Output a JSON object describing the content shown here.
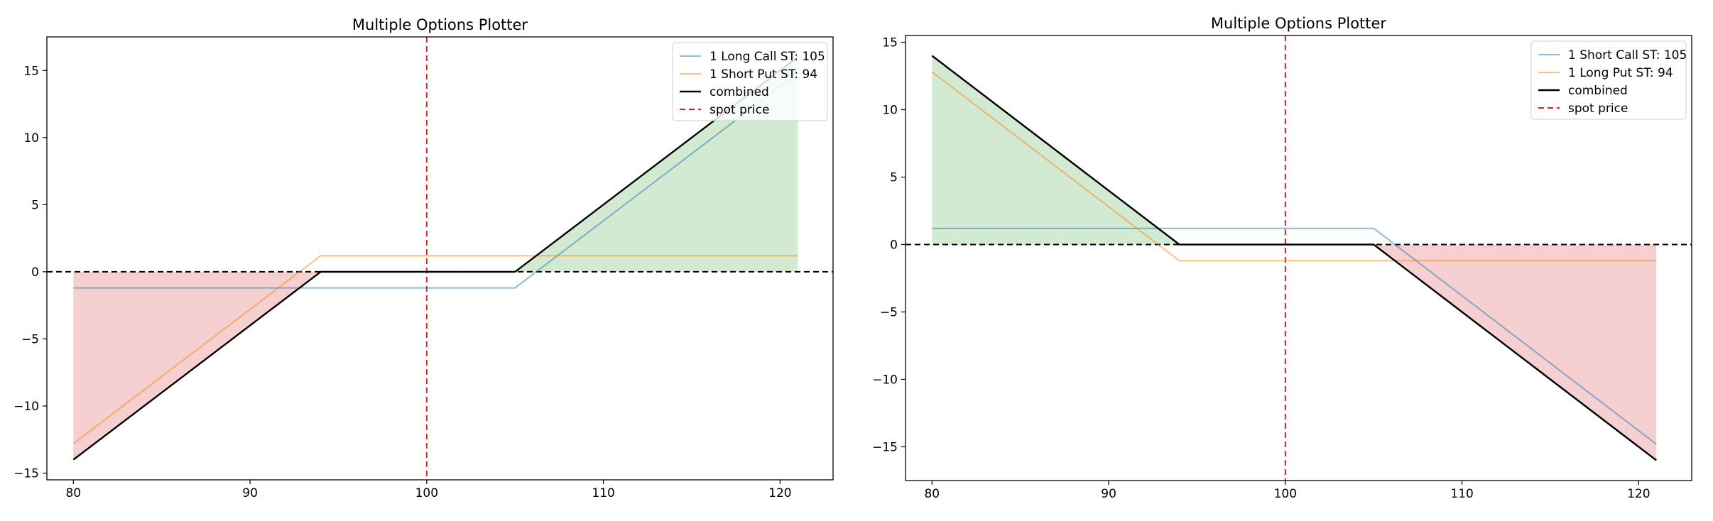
{
  "chart_data": [
    {
      "type": "line",
      "title": "Multiple Options Plotter",
      "xlabel": "",
      "ylabel": "",
      "xlim": [
        78.5,
        123.0
      ],
      "ylim": [
        -15.5,
        17.5
      ],
      "xticks": [
        80,
        90,
        100,
        110,
        120
      ],
      "yticks": [
        -15,
        -10,
        -5,
        0,
        5,
        10,
        15
      ],
      "spot_price": 100,
      "legend_position": "top-right",
      "series": [
        {
          "name": "1 Long Call ST: 105",
          "color": "#1f77b4",
          "style": "solid",
          "x": [
            80,
            105,
            121
          ],
          "y": [
            -1.2,
            -1.2,
            14.8
          ]
        },
        {
          "name": "1 Short Put ST: 94",
          "color": "#ff7f0e",
          "style": "solid",
          "x": [
            80,
            94,
            121
          ],
          "y": [
            -12.8,
            1.2,
            1.2
          ]
        },
        {
          "name": "combined",
          "color": "#000000",
          "style": "solid",
          "x": [
            80,
            94,
            105,
            121
          ],
          "y": [
            -14,
            0,
            0,
            16
          ]
        },
        {
          "name": "spot price",
          "color": "#d62728",
          "style": "dashed"
        }
      ],
      "fill": {
        "positive_color": "#2ca02c",
        "negative_color": "#d62728"
      }
    },
    {
      "type": "line",
      "title": "Multiple Options Plotter",
      "xlabel": "",
      "ylabel": "",
      "xlim": [
        78.5,
        123.0
      ],
      "ylim": [
        -17.5,
        15.5
      ],
      "xticks": [
        80,
        90,
        100,
        110,
        120
      ],
      "yticks": [
        -15,
        -10,
        -5,
        0,
        5,
        10,
        15
      ],
      "spot_price": 100,
      "legend_position": "top-right",
      "series": [
        {
          "name": "1 Short Call ST: 105",
          "color": "#1f77b4",
          "style": "solid",
          "x": [
            80,
            105,
            121
          ],
          "y": [
            1.2,
            1.2,
            -14.8
          ]
        },
        {
          "name": "1 Long Put ST: 94",
          "color": "#ff7f0e",
          "style": "solid",
          "x": [
            80,
            94,
            121
          ],
          "y": [
            12.8,
            -1.2,
            -1.2
          ]
        },
        {
          "name": "combined",
          "color": "#000000",
          "style": "solid",
          "x": [
            80,
            94,
            105,
            121
          ],
          "y": [
            14,
            0,
            0,
            -16
          ]
        },
        {
          "name": "spot price",
          "color": "#d62728",
          "style": "dashed"
        }
      ],
      "fill": {
        "positive_color": "#2ca02c",
        "negative_color": "#d62728"
      }
    }
  ]
}
